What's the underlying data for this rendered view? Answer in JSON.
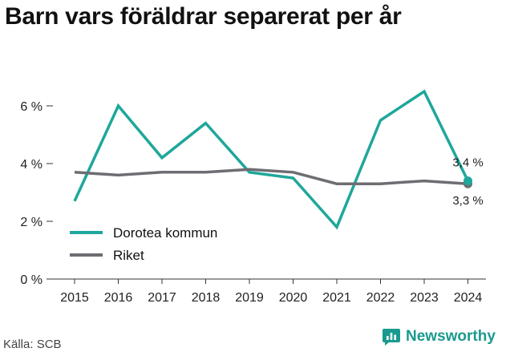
{
  "title": "Barn vars föräldrar separerat per år",
  "source": "Källa: SCB",
  "brand": {
    "name": "Newsworthy"
  },
  "colors": {
    "kommun": "#1ea79a",
    "riket": "#6d6d72",
    "accent": "#1a9a8f"
  },
  "chart_data": {
    "type": "line",
    "title": "Barn vars föräldrar separerat per år",
    "xlabel": "",
    "ylabel": "",
    "categories": [
      "2015",
      "2016",
      "2017",
      "2018",
      "2019",
      "2020",
      "2021",
      "2022",
      "2023",
      "2024"
    ],
    "ylim": [
      0,
      7
    ],
    "yticks": [
      0,
      2,
      4,
      6
    ],
    "ytick_labels": [
      "0 %",
      "2 %",
      "4 %",
      "6 %"
    ],
    "grid": false,
    "legend_position": "bottom-left",
    "series": [
      {
        "name": "Dorotea kommun",
        "color": "#1ea79a",
        "values": [
          2.7,
          6.0,
          4.2,
          5.4,
          3.7,
          3.5,
          1.8,
          5.5,
          6.5,
          3.4
        ],
        "end_label": "3,4 %"
      },
      {
        "name": "Riket",
        "color": "#6d6d72",
        "values": [
          3.7,
          3.6,
          3.7,
          3.7,
          3.8,
          3.7,
          3.3,
          3.3,
          3.4,
          3.3
        ],
        "end_label": "3,3 %"
      }
    ]
  }
}
